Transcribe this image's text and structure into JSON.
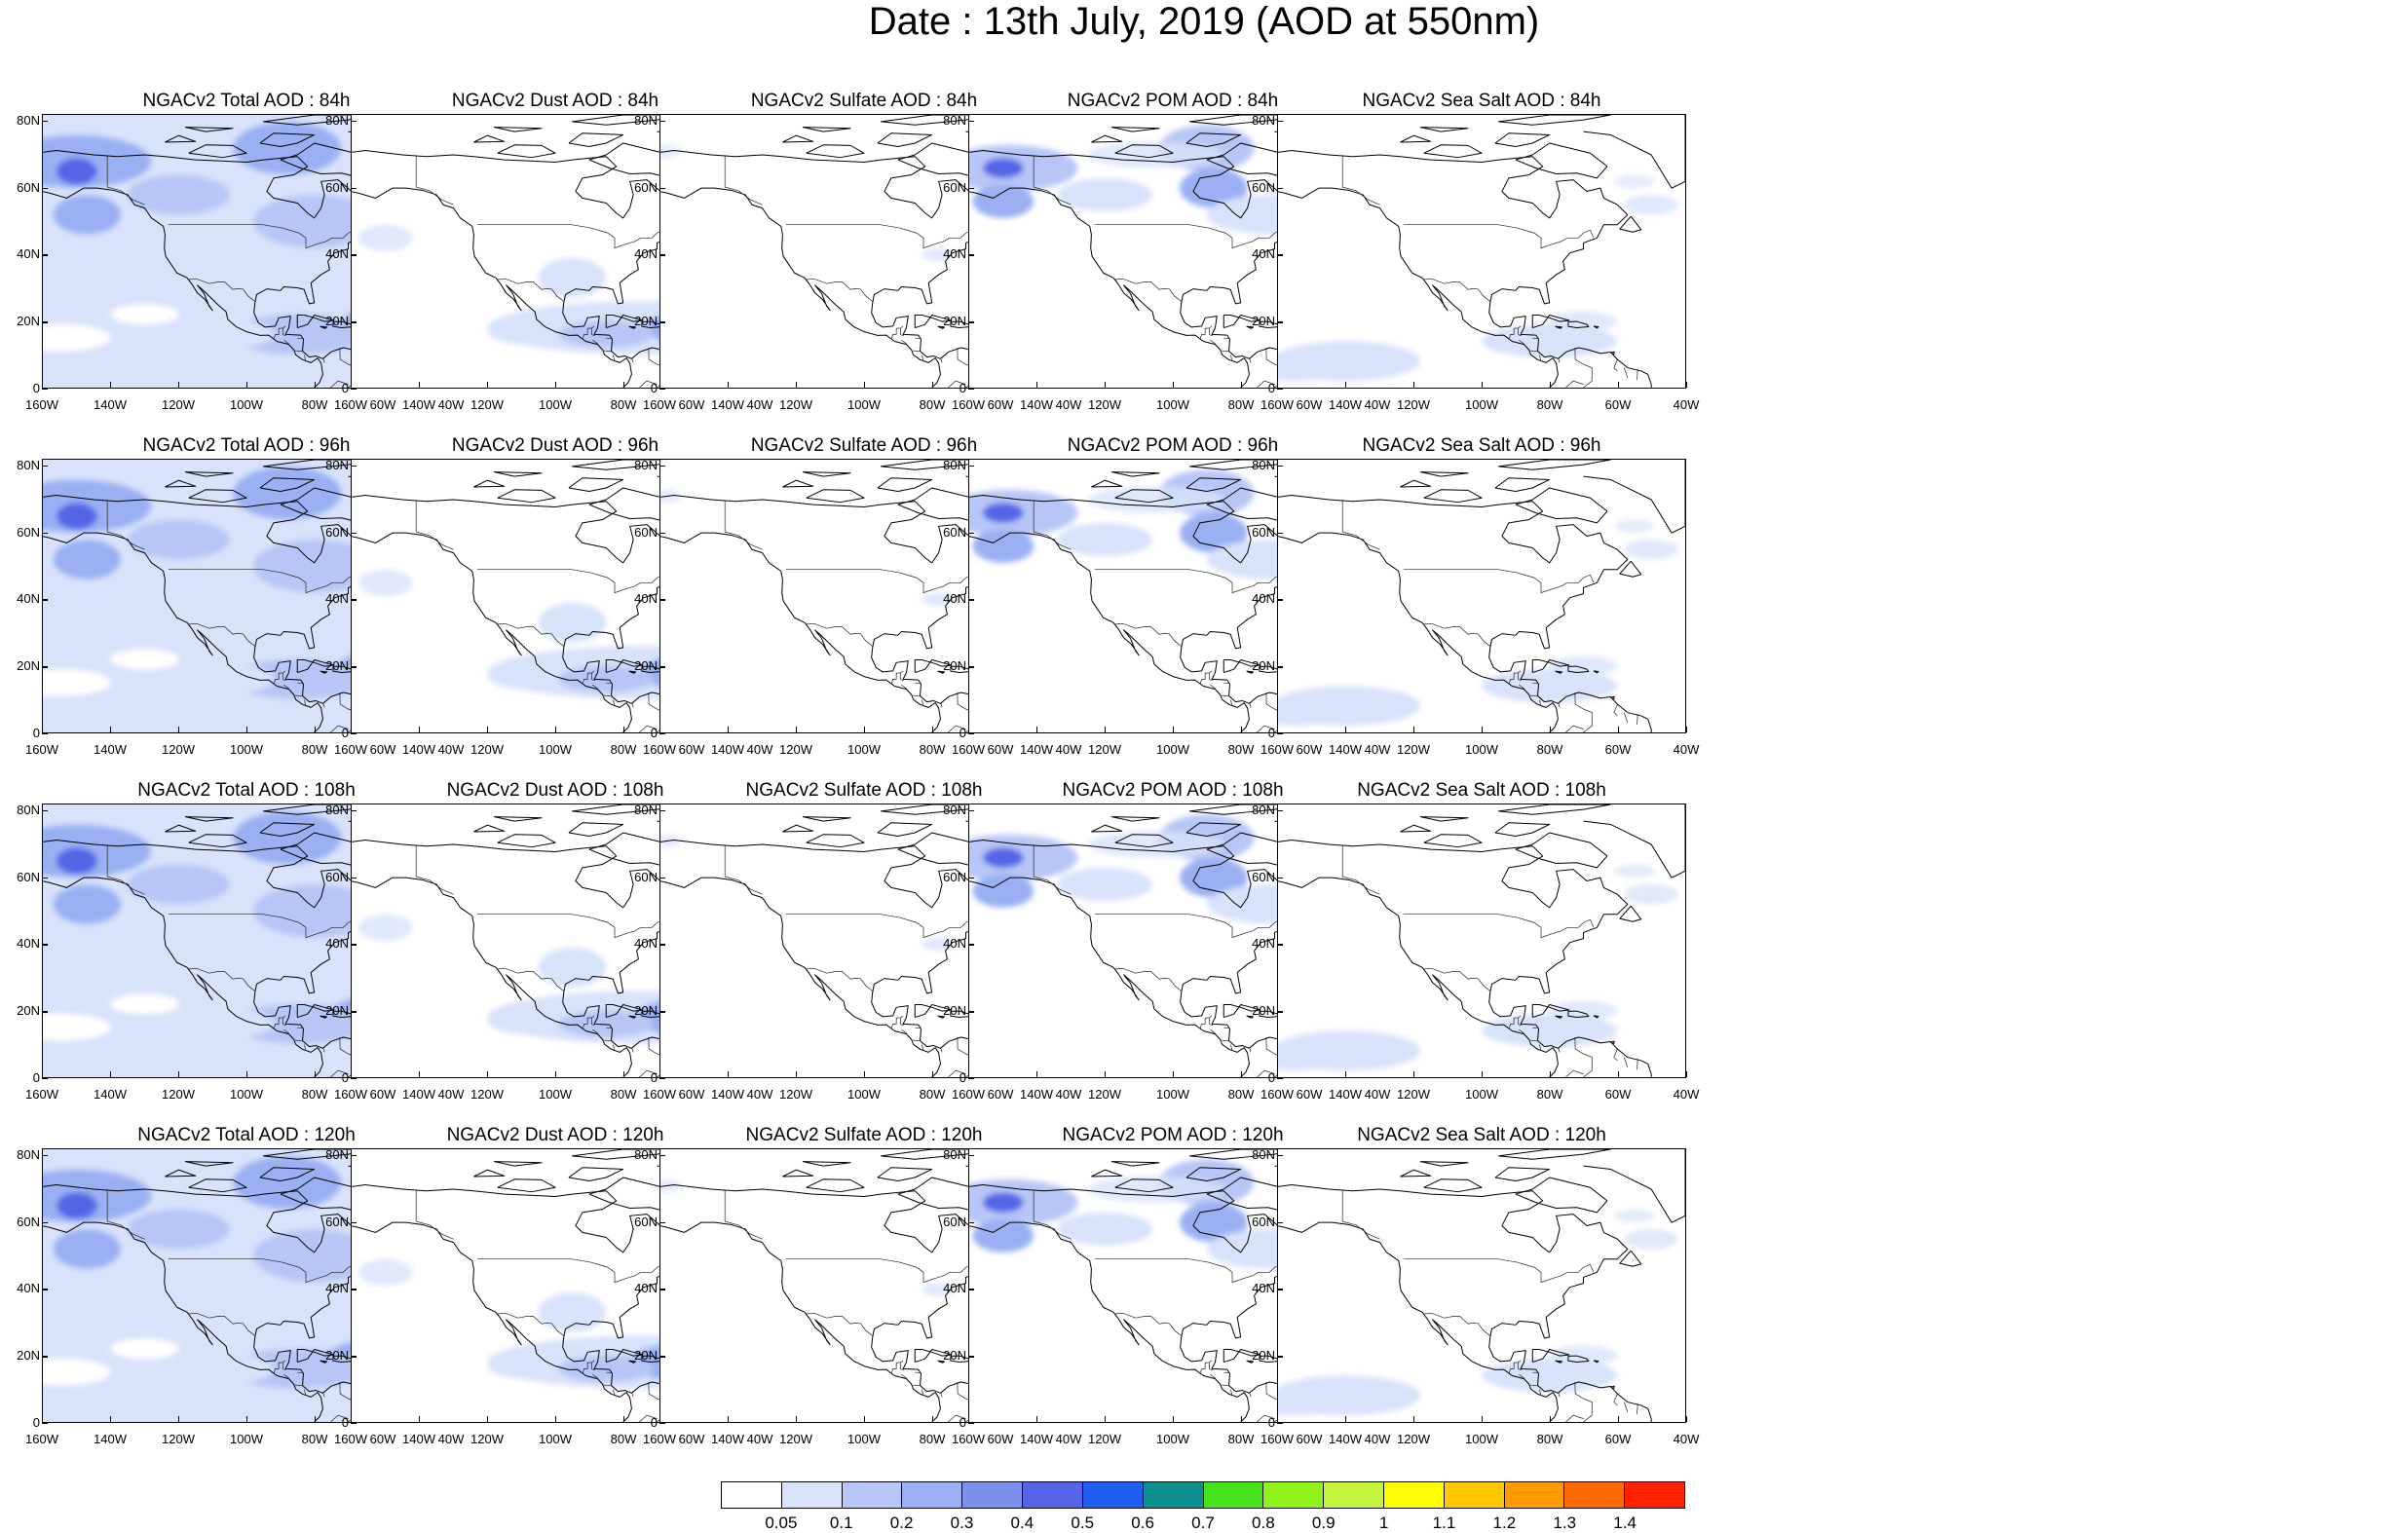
{
  "title": "Date : 13th July, 2019 (AOD at 550nm)",
  "axis": {
    "y_ticks": [
      "80N",
      "60N",
      "40N",
      "20N",
      "0"
    ],
    "x_ticks": [
      "160W",
      "140W",
      "120W",
      "100W",
      "80W",
      "60W",
      "40W"
    ]
  },
  "panels": [
    {
      "title": "NGACv2 Total AOD : 84h",
      "species": "total",
      "hour": 84
    },
    {
      "title": "NGACv2 Dust AOD : 84h",
      "species": "dust",
      "hour": 84
    },
    {
      "title": "NGACv2 Sulfate AOD : 84h",
      "species": "sulfate",
      "hour": 84
    },
    {
      "title": "NGACv2 POM AOD : 84h",
      "species": "pom",
      "hour": 84
    },
    {
      "title": "NGACv2 Sea Salt AOD : 84h",
      "species": "seasalt",
      "hour": 84
    },
    {
      "title": "NGACv2 Total AOD : 96h",
      "species": "total",
      "hour": 96
    },
    {
      "title": "NGACv2 Dust AOD : 96h",
      "species": "dust",
      "hour": 96
    },
    {
      "title": "NGACv2 Sulfate AOD : 96h",
      "species": "sulfate",
      "hour": 96
    },
    {
      "title": "NGACv2 POM AOD : 96h",
      "species": "pom",
      "hour": 96
    },
    {
      "title": "NGACv2 Sea Salt AOD : 96h",
      "species": "seasalt",
      "hour": 96
    },
    {
      "title": "NGACv2 Total AOD : 108h",
      "species": "total",
      "hour": 108
    },
    {
      "title": "NGACv2 Dust AOD : 108h",
      "species": "dust",
      "hour": 108
    },
    {
      "title": "NGACv2 Sulfate AOD : 108h",
      "species": "sulfate",
      "hour": 108
    },
    {
      "title": "NGACv2 POM AOD : 108h",
      "species": "pom",
      "hour": 108
    },
    {
      "title": "NGACv2 Sea Salt AOD : 108h",
      "species": "seasalt",
      "hour": 108
    },
    {
      "title": "NGACv2 Total AOD : 120h",
      "species": "total",
      "hour": 120
    },
    {
      "title": "NGACv2 Dust AOD : 120h",
      "species": "dust",
      "hour": 120
    },
    {
      "title": "NGACv2 Sulfate AOD : 120h",
      "species": "sulfate",
      "hour": 120
    },
    {
      "title": "NGACv2 POM AOD : 120h",
      "species": "pom",
      "hour": 120
    },
    {
      "title": "NGACv2 Sea Salt  AOD : 120h",
      "species": "seasalt",
      "hour": 120
    }
  ],
  "colorbar": {
    "labels": [
      "0.05",
      "0.1",
      "0.2",
      "0.3",
      "0.4",
      "0.5",
      "0.6",
      "0.7",
      "0.8",
      "0.9",
      "1",
      "1.1",
      "1.2",
      "1.3",
      "1.4"
    ],
    "colors": [
      "#ffffff",
      "#d8e2fb",
      "#b7c6f6",
      "#9ab0f3",
      "#7b91ee",
      "#5565e6",
      "#1f5ef0",
      "#0b8f8f",
      "#46e21a",
      "#8ff21a",
      "#c6f53f",
      "#ffff00",
      "#ffc800",
      "#ff9a00",
      "#ff6a00",
      "#ff2200"
    ]
  }
}
